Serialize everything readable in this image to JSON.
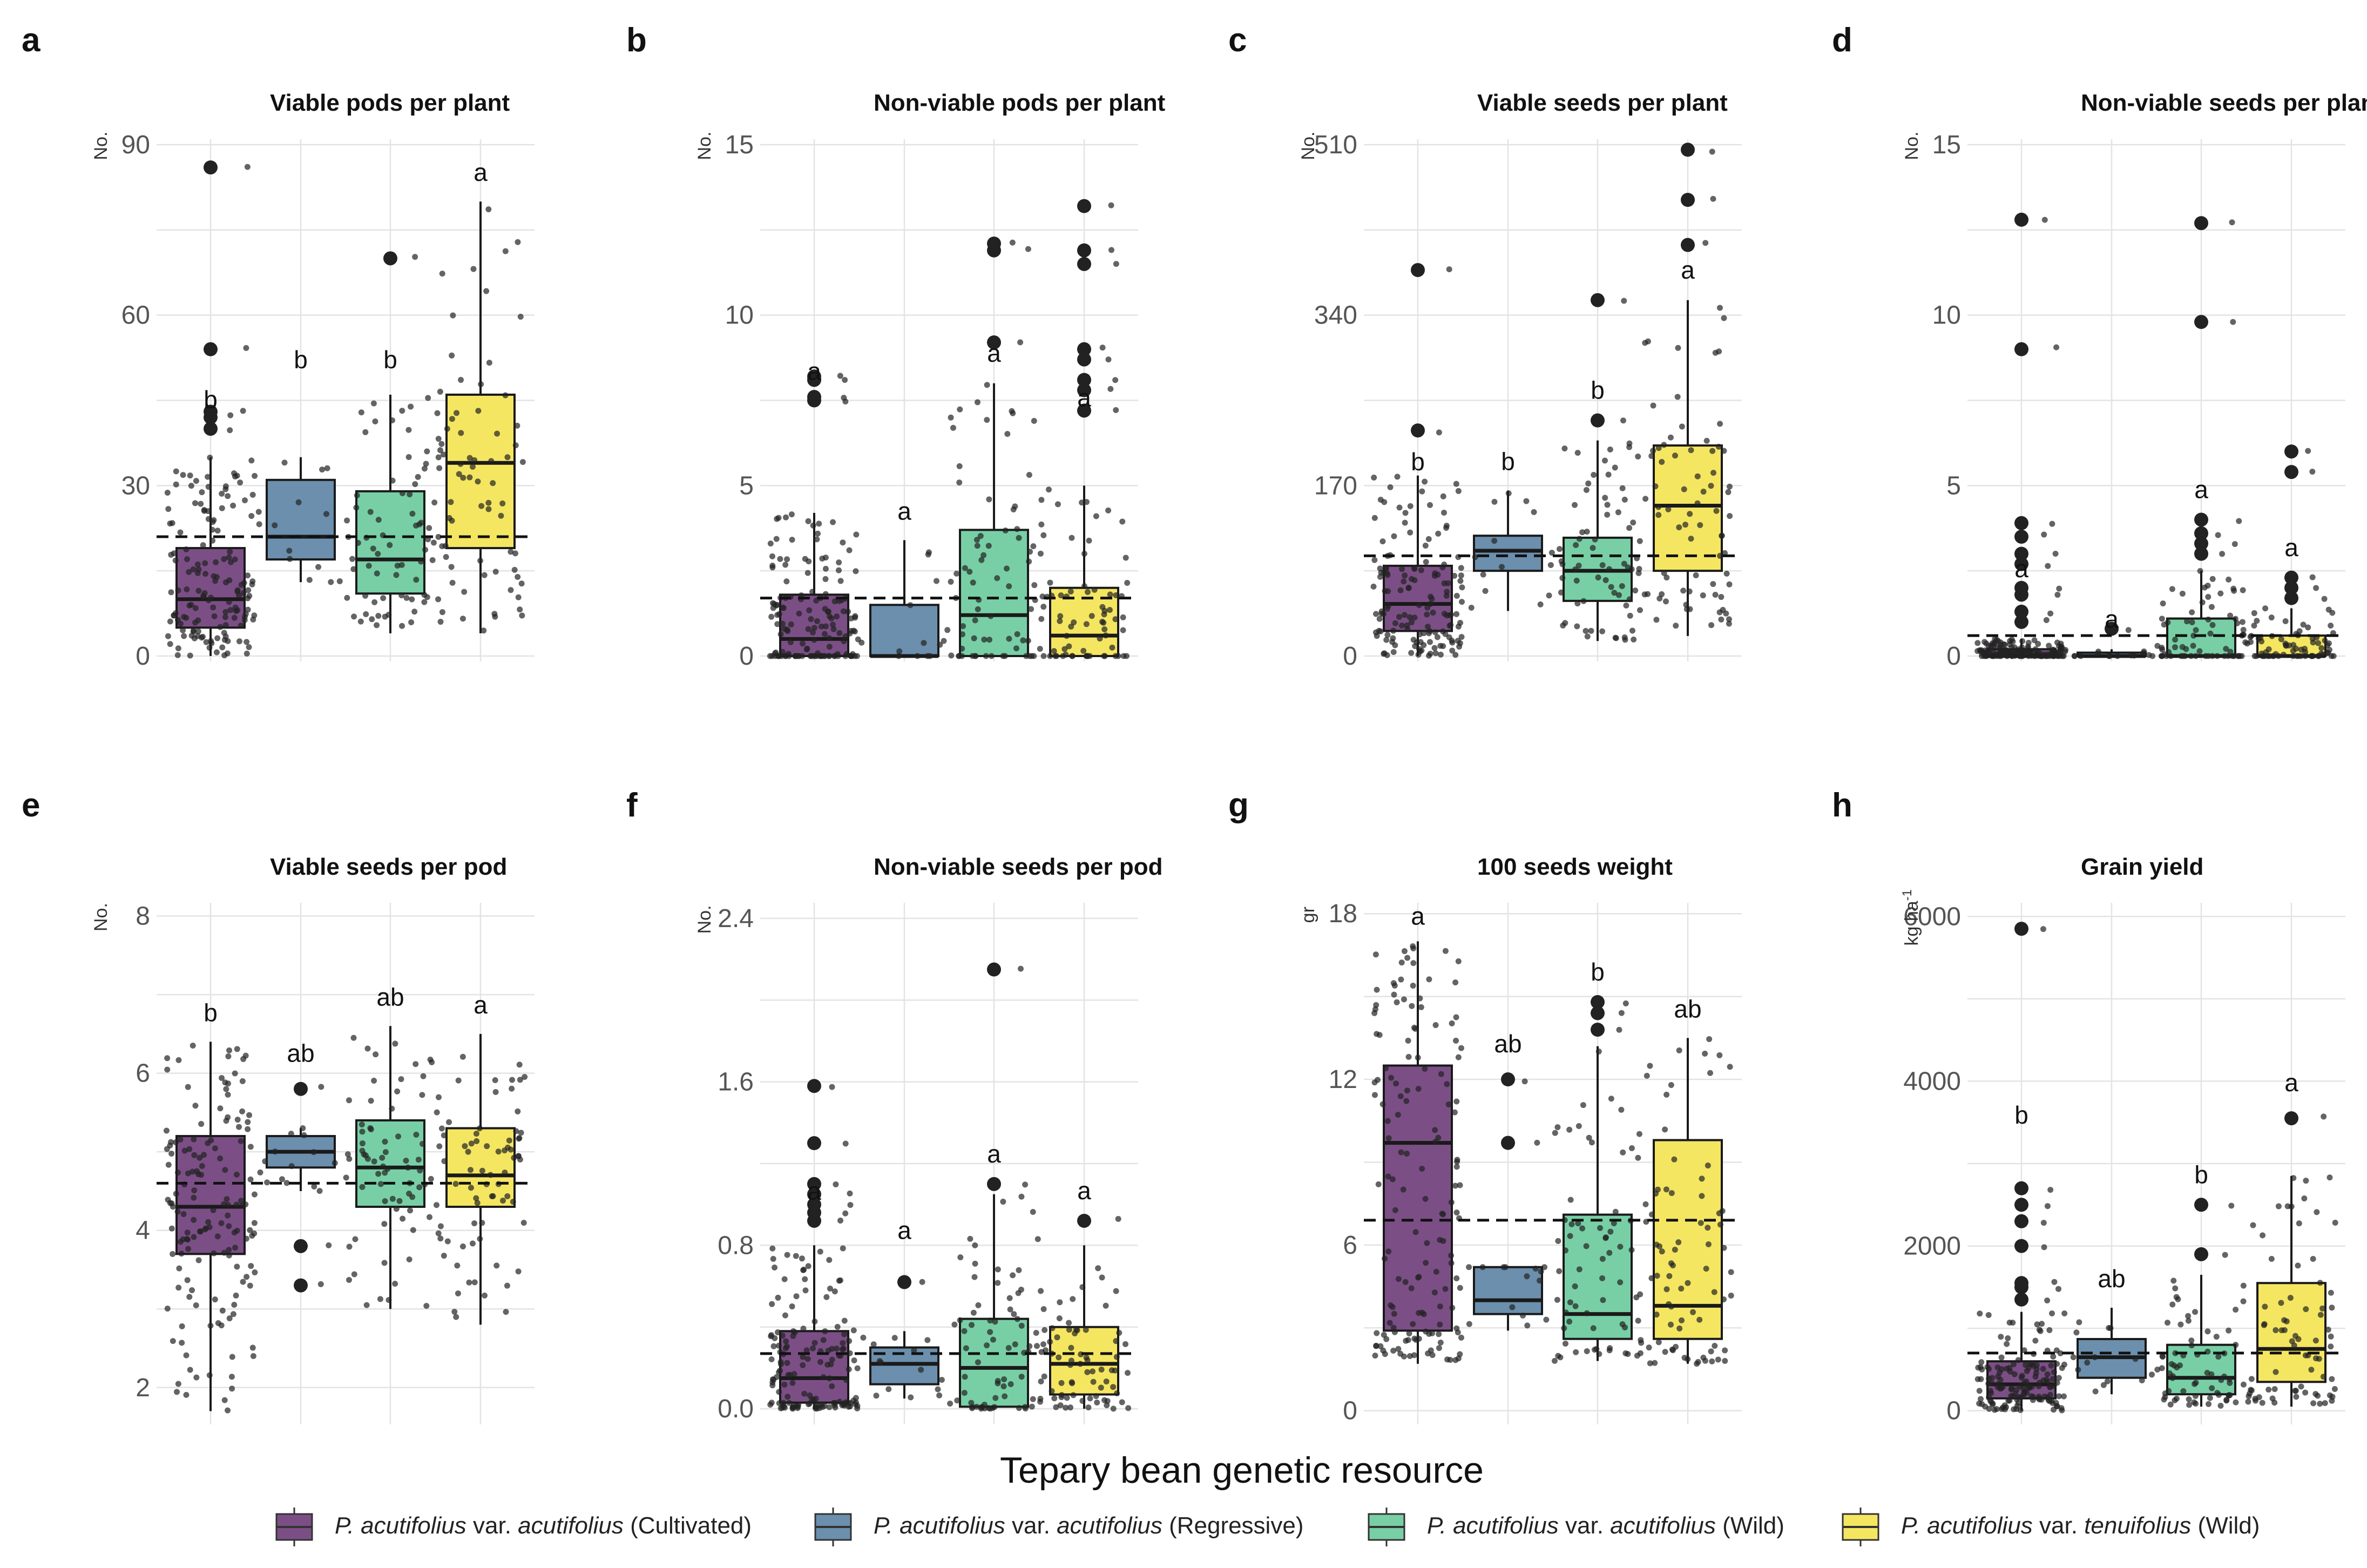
{
  "colors": {
    "cultivated": "#7b4f86",
    "regressive": "#6b8fad",
    "wild": "#78cfa6",
    "tenuifolius": "#f5e662"
  },
  "x_title": "Tepary bean genetic resource",
  "legend": [
    {
      "italic1": "P. acutifolius",
      "plain1": " var. ",
      "italic2": "acutifolius",
      "plain2": " (Cultivated)",
      "color_key": "cultivated"
    },
    {
      "italic1": "P. acutifolius",
      "plain1": " var. ",
      "italic2": "acutifolius",
      "plain2": " (Regressive)",
      "color_key": "regressive"
    },
    {
      "italic1": "P. acutifolius",
      "plain1": " var. ",
      "italic2": "acutifolius",
      "plain2": " (Wild)",
      "color_key": "wild"
    },
    {
      "italic1": "P. acutifolius",
      "plain1": " var. ",
      "italic2": "tenuifolius",
      "plain2": " (Wild)",
      "color_key": "tenuifolius"
    }
  ],
  "chart_data": [
    {
      "type": "box",
      "label": "a",
      "title": "Viable pods per plant",
      "ylabel": "No.",
      "ylabel_sup": "",
      "ylim": [
        0,
        90
      ],
      "ticks": [
        {
          "v": 0,
          "t": "0"
        },
        {
          "v": 30,
          "t": "30"
        },
        {
          "v": 60,
          "t": "60"
        },
        {
          "v": 90,
          "t": "90"
        }
      ],
      "mean": 21,
      "boxes": [
        {
          "q1": 5,
          "med": 10,
          "q3": 19,
          "lo": 0,
          "hi": 35,
          "letter": "b",
          "out": [
            40,
            42,
            43,
            54,
            86
          ]
        },
        {
          "q1": 17,
          "med": 21,
          "q3": 31,
          "lo": 13,
          "hi": 35,
          "letter": "b",
          "out": []
        },
        {
          "q1": 11,
          "med": 17,
          "q3": 29,
          "lo": 4,
          "hi": 46,
          "letter": "b",
          "out": [
            70
          ]
        },
        {
          "q1": 19,
          "med": 34,
          "q3": 46,
          "lo": 4,
          "hi": 80,
          "letter": "a",
          "out": []
        }
      ]
    },
    {
      "type": "box",
      "label": "b",
      "title": "Non-viable pods per plant",
      "ylabel": "No.",
      "ylabel_sup": "",
      "ylim": [
        0,
        15
      ],
      "ticks": [
        {
          "v": 0,
          "t": "0"
        },
        {
          "v": 5,
          "t": "5"
        },
        {
          "v": 10,
          "t": "10"
        },
        {
          "v": 15,
          "t": "15"
        }
      ],
      "mean": 1.7,
      "boxes": [
        {
          "q1": 0,
          "med": 0.5,
          "q3": 1.8,
          "lo": 0,
          "hi": 4.2,
          "letter": "a",
          "out": [
            7.5,
            7.6,
            8.1,
            8.2
          ]
        },
        {
          "q1": 0,
          "med": 0,
          "q3": 1.5,
          "lo": 0,
          "hi": 3.4,
          "letter": "a",
          "out": []
        },
        {
          "q1": 0,
          "med": 1.2,
          "q3": 3.7,
          "lo": 0,
          "hi": 8,
          "letter": "a",
          "out": [
            9.2,
            11.9,
            12.1
          ]
        },
        {
          "q1": 0,
          "med": 0.6,
          "q3": 2,
          "lo": 0,
          "hi": 5,
          "letter": "a",
          "out": [
            7.2,
            7.8,
            8.1,
            8.7,
            9,
            11.5,
            11.9,
            13.2
          ]
        }
      ]
    },
    {
      "type": "box",
      "label": "c",
      "title": "Viable seeds per plant",
      "ylabel": "No.",
      "ylabel_sup": "",
      "ylim": [
        0,
        510
      ],
      "ticks": [
        {
          "v": 0,
          "t": "0"
        },
        {
          "v": 170,
          "t": "170"
        },
        {
          "v": 340,
          "t": "340"
        },
        {
          "v": 510,
          "t": "510"
        }
      ],
      "mean": 100,
      "boxes": [
        {
          "q1": 25,
          "med": 52,
          "q3": 90,
          "lo": 0,
          "hi": 180,
          "letter": "b",
          "out": [
            225,
            385
          ]
        },
        {
          "q1": 85,
          "med": 105,
          "q3": 120,
          "lo": 45,
          "hi": 165,
          "letter": "b",
          "out": []
        },
        {
          "q1": 55,
          "med": 85,
          "q3": 118,
          "lo": 15,
          "hi": 215,
          "letter": "b",
          "out": [
            235,
            355
          ]
        },
        {
          "q1": 85,
          "med": 150,
          "q3": 210,
          "lo": 20,
          "hi": 355,
          "letter": "a",
          "out": [
            410,
            455,
            505
          ]
        }
      ]
    },
    {
      "type": "box",
      "label": "d",
      "title": "Non-viable seeds per plant",
      "ylabel": "No.",
      "ylabel_sup": "",
      "ylim": [
        0,
        15
      ],
      "ticks": [
        {
          "v": 0,
          "t": "0"
        },
        {
          "v": 5,
          "t": "5"
        },
        {
          "v": 10,
          "t": "10"
        },
        {
          "v": 15,
          "t": "15"
        }
      ],
      "mean": 0.6,
      "boxes": [
        {
          "q1": 0,
          "med": 0,
          "q3": 0.2,
          "lo": 0,
          "hi": 0.5,
          "letter": "a",
          "out": [
            1,
            1.3,
            1.8,
            2,
            2.7,
            3,
            3.5,
            3.9,
            9,
            12.8
          ]
        },
        {
          "q1": 0,
          "med": 0,
          "q3": 0.1,
          "lo": 0,
          "hi": 0.2,
          "letter": "a",
          "out": [
            0.8
          ]
        },
        {
          "q1": 0,
          "med": 0,
          "q3": 1.1,
          "lo": 0,
          "hi": 2.5,
          "letter": "a",
          "out": [
            3,
            3.3,
            3.6,
            4,
            9.8,
            12.7
          ]
        },
        {
          "q1": 0,
          "med": 0,
          "q3": 0.6,
          "lo": 0,
          "hi": 1.4,
          "letter": "a",
          "out": [
            1.7,
            2,
            2.3,
            5.4,
            6
          ]
        }
      ]
    },
    {
      "type": "box",
      "label": "e",
      "title": "Viable seeds per pod",
      "ylabel": "No.",
      "ylabel_sup": "",
      "ylim": [
        1.6,
        8.1
      ],
      "ticks": [
        {
          "v": 2,
          "t": "2"
        },
        {
          "v": 4,
          "t": "4"
        },
        {
          "v": 6,
          "t": "6"
        },
        {
          "v": 8,
          "t": "8"
        }
      ],
      "mean": 4.6,
      "boxes": [
        {
          "q1": 3.7,
          "med": 4.3,
          "q3": 5.2,
          "lo": 1.7,
          "hi": 6.4,
          "letter": "b",
          "out": []
        },
        {
          "q1": 4.8,
          "med": 5,
          "q3": 5.2,
          "lo": 4.5,
          "hi": 5.3,
          "letter": "ab",
          "out": [
            3.3,
            3.8,
            5.8
          ]
        },
        {
          "q1": 4.3,
          "med": 4.8,
          "q3": 5.4,
          "lo": 3,
          "hi": 6.6,
          "letter": "ab",
          "out": []
        },
        {
          "q1": 4.3,
          "med": 4.7,
          "q3": 5.3,
          "lo": 2.8,
          "hi": 6.5,
          "letter": "a",
          "out": []
        }
      ]
    },
    {
      "type": "box",
      "label": "f",
      "title": "Non-viable seeds per pod",
      "ylabel": "No.",
      "ylabel_sup": "",
      "ylim": [
        -0.05,
        2.45
      ],
      "ticks": [
        {
          "v": 0,
          "t": "0.0"
        },
        {
          "v": 0.8,
          "t": "0.8"
        },
        {
          "v": 1.6,
          "t": "1.6"
        },
        {
          "v": 2.4,
          "t": "2.4"
        }
      ],
      "mean": 0.27,
      "boxes": [
        {
          "q1": 0.03,
          "med": 0.15,
          "q3": 0.38,
          "lo": 0,
          "hi": 0.8,
          "letter": "a",
          "out": [
            0.92,
            0.96,
            1,
            1.05,
            1.1,
            1.3,
            1.58
          ]
        },
        {
          "q1": 0.12,
          "med": 0.22,
          "q3": 0.3,
          "lo": 0.05,
          "hi": 0.38,
          "letter": "a",
          "out": [
            0.62
          ]
        },
        {
          "q1": 0.01,
          "med": 0.2,
          "q3": 0.44,
          "lo": 0,
          "hi": 1.05,
          "letter": "a",
          "out": [
            1.1,
            2.15
          ]
        },
        {
          "q1": 0.07,
          "med": 0.22,
          "q3": 0.4,
          "lo": 0,
          "hi": 0.8,
          "letter": "a",
          "out": [
            0.92
          ]
        }
      ]
    },
    {
      "type": "box",
      "label": "g",
      "title": "100 seeds weight",
      "ylabel": "gr",
      "ylabel_sup": "",
      "ylim": [
        -0.3,
        18.2
      ],
      "ticks": [
        {
          "v": 0,
          "t": "0"
        },
        {
          "v": 6,
          "t": "6"
        },
        {
          "v": 12,
          "t": "12"
        },
        {
          "v": 18,
          "t": "18"
        }
      ],
      "mean": 6.9,
      "boxes": [
        {
          "q1": 2.9,
          "med": 9.7,
          "q3": 12.5,
          "lo": 1.7,
          "hi": 17,
          "letter": "a",
          "out": []
        },
        {
          "q1": 3.5,
          "med": 4,
          "q3": 5.2,
          "lo": 2.9,
          "hi": 5.2,
          "letter": "ab",
          "out": [
            9.7,
            12
          ]
        },
        {
          "q1": 2.6,
          "med": 3.5,
          "q3": 7.1,
          "lo": 1.8,
          "hi": 13.2,
          "letter": "b",
          "out": [
            13.8,
            14.4,
            14.8
          ]
        },
        {
          "q1": 2.6,
          "med": 3.8,
          "q3": 9.8,
          "lo": 1.7,
          "hi": 13.5,
          "letter": "ab",
          "out": []
        }
      ]
    },
    {
      "type": "box",
      "label": "h",
      "title": "Grain yield",
      "ylabel": "kg ha",
      "ylabel_sup": "-1",
      "ylim": [
        -100,
        6100
      ],
      "ticks": [
        {
          "v": 0,
          "t": "0"
        },
        {
          "v": 2000,
          "t": "2000"
        },
        {
          "v": 4000,
          "t": "4000"
        },
        {
          "v": 6000,
          "t": "6000"
        }
      ],
      "mean": 700,
      "boxes": [
        {
          "q1": 150,
          "med": 320,
          "q3": 600,
          "lo": 0,
          "hi": 1200,
          "letter": "b",
          "out": [
            1350,
            1500,
            1550,
            2000,
            2300,
            2500,
            2700,
            5850
          ]
        },
        {
          "q1": 400,
          "med": 650,
          "q3": 870,
          "lo": 200,
          "hi": 1250,
          "letter": "ab",
          "out": []
        },
        {
          "q1": 200,
          "med": 400,
          "q3": 800,
          "lo": 50,
          "hi": 1650,
          "letter": "b",
          "out": [
            1900,
            2500
          ]
        },
        {
          "q1": 350,
          "med": 750,
          "q3": 1550,
          "lo": 50,
          "hi": 2850,
          "letter": "a",
          "out": [
            3550
          ]
        }
      ]
    }
  ]
}
